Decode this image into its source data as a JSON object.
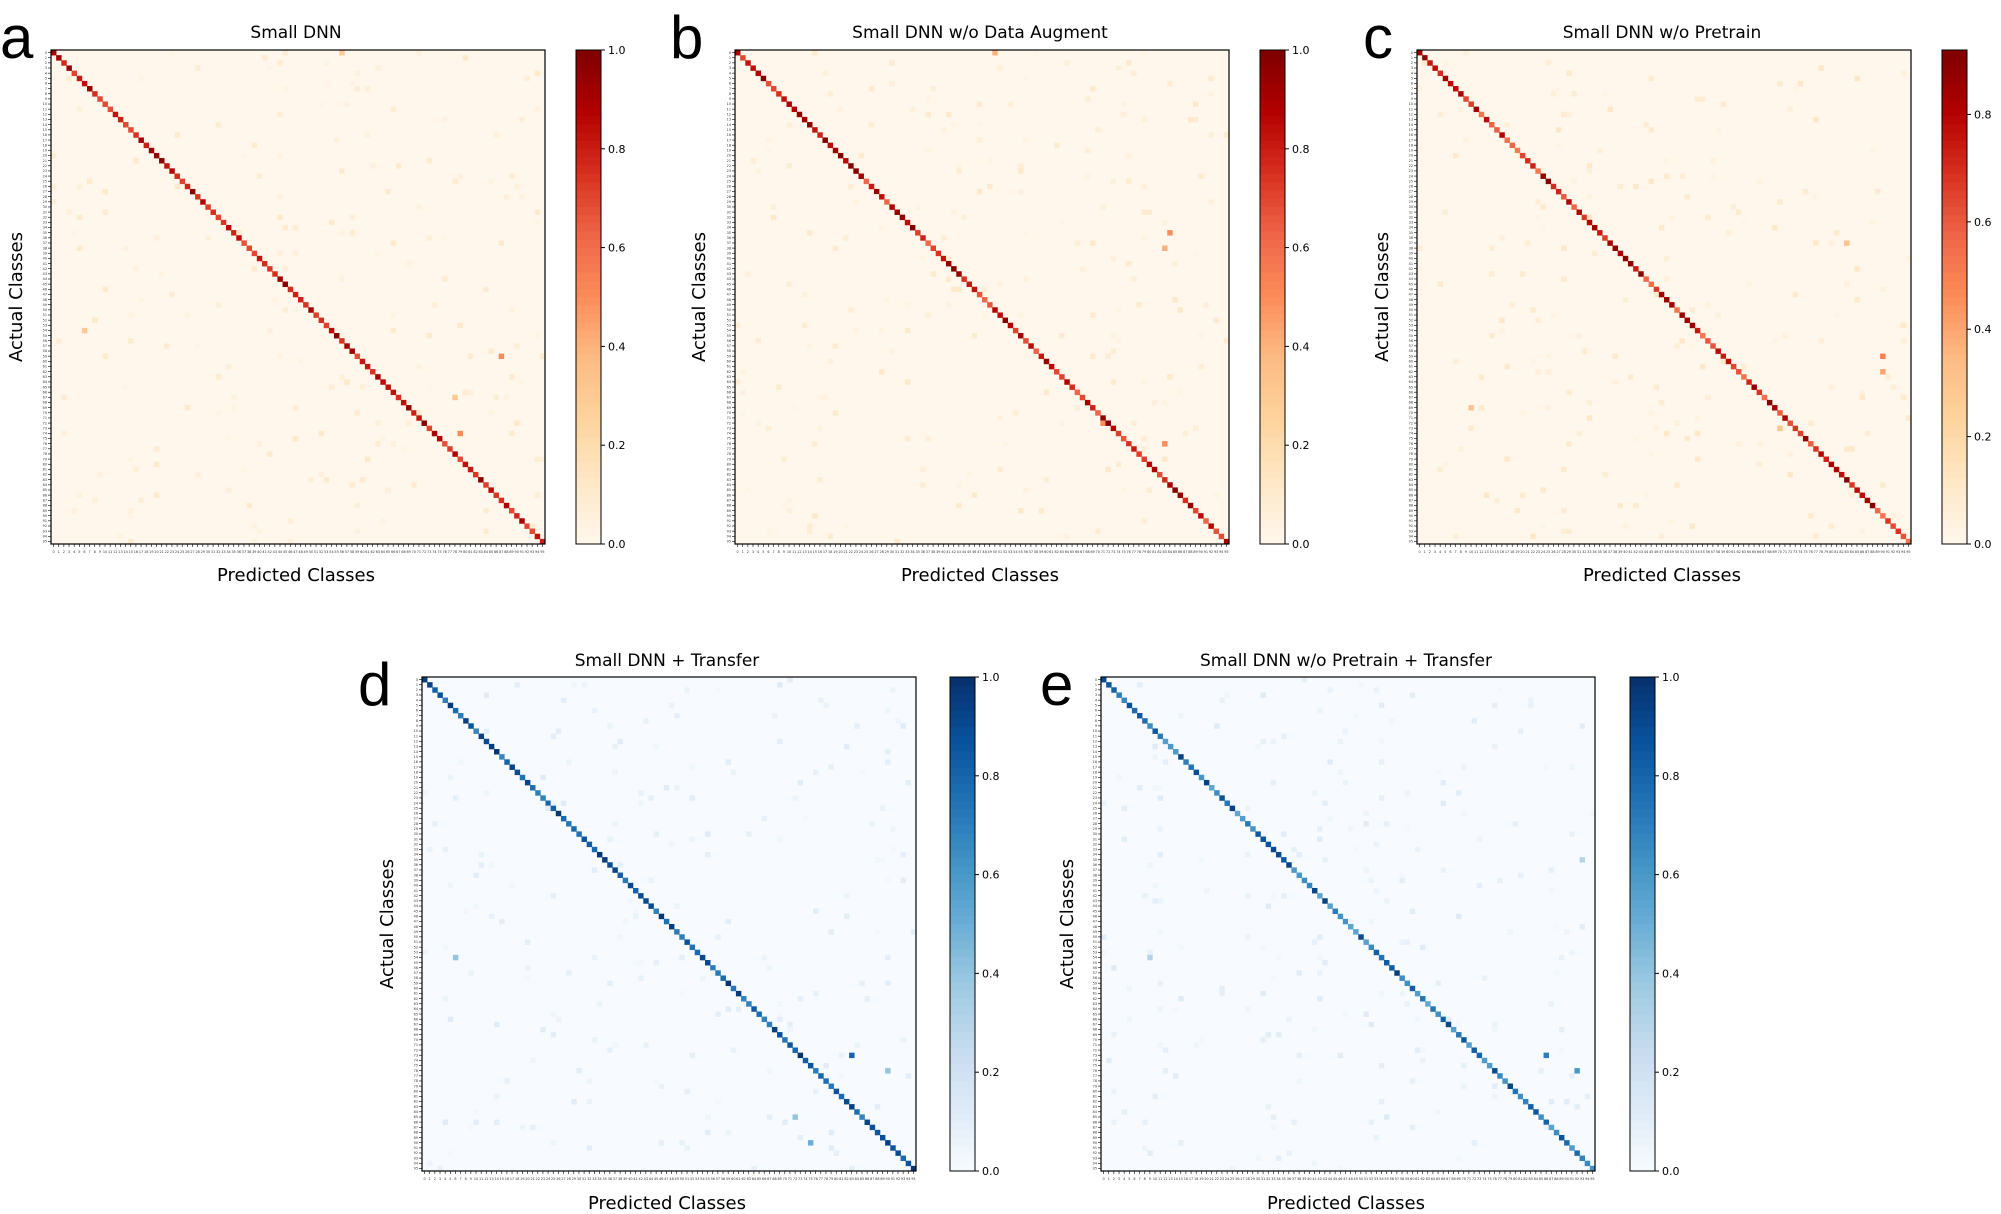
{
  "figure": {
    "panels": [
      {
        "letter": "a",
        "title": "Small DNN",
        "colormap": "OrRd",
        "vmax": 1.0,
        "colorbar_ticks": [
          "0.0",
          "0.2",
          "0.4",
          "0.6",
          "0.8",
          "1.0"
        ],
        "xlabel": "Predicted Classes",
        "ylabel": "Actual Classes"
      },
      {
        "letter": "b",
        "title": "Small DNN w/o Data Augment",
        "colormap": "OrRd",
        "vmax": 1.0,
        "colorbar_ticks": [
          "0.0",
          "0.2",
          "0.4",
          "0.6",
          "0.8",
          "1.0"
        ],
        "xlabel": "Predicted Classes",
        "ylabel": "Actual Classes"
      },
      {
        "letter": "c",
        "title": "Small DNN w/o Pretrain",
        "colormap": "OrRd",
        "vmax": 0.92,
        "colorbar_ticks": [
          "0.0",
          "0.2",
          "0.4",
          "0.6",
          "0.8"
        ],
        "xlabel": "Predicted Classes",
        "ylabel": "Actual Classes"
      },
      {
        "letter": "d",
        "title": "Small DNN + Transfer",
        "colormap": "Blues",
        "vmax": 1.0,
        "colorbar_ticks": [
          "0.0",
          "0.2",
          "0.4",
          "0.6",
          "0.8",
          "1.0"
        ],
        "xlabel": "Predicted Classes",
        "ylabel": "Actual Classes"
      },
      {
        "letter": "e",
        "title": "Small DNN w/o Pretrain + Transfer",
        "colormap": "Blues",
        "vmax": 1.0,
        "colorbar_ticks": [
          "0.0",
          "0.2",
          "0.4",
          "0.6",
          "0.8",
          "1.0"
        ],
        "xlabel": "Predicted Classes",
        "ylabel": "Actual Classes"
      }
    ]
  },
  "chart_data": [
    {
      "type": "heatmap",
      "title": "Small DNN",
      "xlabel": "Predicted Classes",
      "ylabel": "Actual Classes",
      "n_classes": 96,
      "class_labels_range": [
        0,
        95
      ],
      "value_range": [
        0.0,
        1.0
      ],
      "diagonal_values_approx": [
        0.5,
        0.98
      ],
      "off_diagonal_max_approx": 0.5,
      "colormap": "OrRd",
      "notable_off_diagonal": [
        {
          "actual": 0,
          "predicted": 56,
          "value": 0.3
        },
        {
          "actual": 59,
          "predicted": 87,
          "value": 0.5
        },
        {
          "actual": 67,
          "predicted": 78,
          "value": 0.3
        },
        {
          "actual": 74,
          "predicted": 79,
          "value": 0.5
        },
        {
          "actual": 54,
          "predicted": 6,
          "value": 0.3
        }
      ]
    },
    {
      "type": "heatmap",
      "title": "Small DNN w/o Data Augment",
      "xlabel": "Predicted Classes",
      "ylabel": "Actual Classes",
      "n_classes": 96,
      "class_labels_range": [
        0,
        95
      ],
      "value_range": [
        0.0,
        1.0
      ],
      "diagonal_values_approx": [
        0.4,
        1.0
      ],
      "off_diagonal_max_approx": 0.5,
      "colormap": "OrRd",
      "notable_off_diagonal": [
        {
          "actual": 0,
          "predicted": 50,
          "value": 0.4
        },
        {
          "actual": 35,
          "predicted": 84,
          "value": 0.5
        },
        {
          "actual": 72,
          "predicted": 71,
          "value": 0.5
        },
        {
          "actual": 76,
          "predicted": 83,
          "value": 0.5
        },
        {
          "actual": 38,
          "predicted": 83,
          "value": 0.4
        }
      ]
    },
    {
      "type": "heatmap",
      "title": "Small DNN w/o Pretrain",
      "xlabel": "Predicted Classes",
      "ylabel": "Actual Classes",
      "n_classes": 96,
      "class_labels_range": [
        0,
        95
      ],
      "value_range": [
        0.0,
        0.92
      ],
      "diagonal_values_approx": [
        0.3,
        0.92
      ],
      "off_diagonal_max_approx": 0.5,
      "colormap": "OrRd",
      "notable_off_diagonal": [
        {
          "actual": 59,
          "predicted": 90,
          "value": 0.5
        },
        {
          "actual": 62,
          "predicted": 90,
          "value": 0.4
        },
        {
          "actual": 37,
          "predicted": 83,
          "value": 0.3
        },
        {
          "actual": 69,
          "predicted": 10,
          "value": 0.3
        },
        {
          "actual": 73,
          "predicted": 70,
          "value": 0.3
        }
      ]
    },
    {
      "type": "heatmap",
      "title": "Small DNN + Transfer",
      "xlabel": "Predicted Classes",
      "ylabel": "Actual Classes",
      "n_classes": 96,
      "class_labels_range": [
        0,
        95
      ],
      "value_range": [
        0.0,
        1.0
      ],
      "diagonal_values_approx": [
        0.5,
        1.0
      ],
      "off_diagonal_max_approx": 0.85,
      "colormap": "Blues",
      "notable_off_diagonal": [
        {
          "actual": 73,
          "predicted": 83,
          "value": 0.8
        },
        {
          "actual": 76,
          "predicted": 90,
          "value": 0.4
        },
        {
          "actual": 85,
          "predicted": 72,
          "value": 0.4
        },
        {
          "actual": 54,
          "predicted": 6,
          "value": 0.4
        },
        {
          "actual": 90,
          "predicted": 75,
          "value": 0.5
        }
      ]
    },
    {
      "type": "heatmap",
      "title": "Small DNN w/o Pretrain + Transfer",
      "xlabel": "Predicted Classes",
      "ylabel": "Actual Classes",
      "n_classes": 96,
      "class_labels_range": [
        0,
        95
      ],
      "value_range": [
        0.0,
        1.0
      ],
      "diagonal_values_approx": [
        0.3,
        0.95
      ],
      "off_diagonal_max_approx": 0.7,
      "colormap": "Blues",
      "notable_off_diagonal": [
        {
          "actual": 73,
          "predicted": 86,
          "value": 0.7
        },
        {
          "actual": 76,
          "predicted": 92,
          "value": 0.6
        },
        {
          "actual": 54,
          "predicted": 9,
          "value": 0.3
        },
        {
          "actual": 35,
          "predicted": 93,
          "value": 0.3
        }
      ]
    }
  ]
}
